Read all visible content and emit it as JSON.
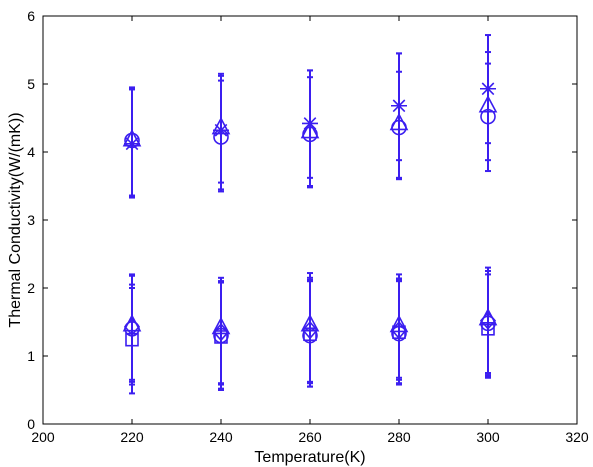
{
  "chart_data": {
    "type": "scatter",
    "xlabel": "Temperature(K)",
    "ylabel": "Thermal Conductivity(W/(mK))",
    "xlim": [
      200,
      320
    ],
    "ylim": [
      0,
      6
    ],
    "xticks": [
      200,
      220,
      240,
      260,
      280,
      300,
      320
    ],
    "yticks": [
      0,
      1,
      2,
      3,
      4,
      5,
      6
    ],
    "grid": false,
    "legend": "none",
    "series": [
      {
        "marker": "circle",
        "color": "#3b1ef0",
        "x": [
          220,
          240,
          260,
          280,
          300
        ],
        "y": [
          4.17,
          4.22,
          4.26,
          4.36,
          4.52
        ],
        "err_lo": [
          3.35,
          3.45,
          3.5,
          3.62,
          3.72
        ],
        "err_hi": [
          4.95,
          5.05,
          5.1,
          5.18,
          5.3
        ]
      },
      {
        "marker": "triangle",
        "color": "#3b1ef0",
        "x": [
          220,
          240,
          260,
          280,
          300
        ],
        "y": [
          4.18,
          4.36,
          4.3,
          4.42,
          4.68
        ],
        "err_lo": [
          3.33,
          3.42,
          3.48,
          3.6,
          3.88
        ],
        "err_hi": [
          4.93,
          5.12,
          5.2,
          5.45,
          5.47
        ]
      },
      {
        "marker": "star",
        "color": "#3b1ef0",
        "x": [
          220,
          240,
          260,
          280,
          300
        ],
        "y": [
          4.12,
          4.32,
          4.42,
          4.68,
          4.93
        ],
        "err_lo": [
          3.36,
          3.55,
          3.62,
          3.88,
          4.13
        ],
        "err_hi": [
          4.92,
          5.15,
          5.2,
          5.45,
          5.72
        ]
      },
      {
        "marker": "diamond",
        "color": "#3b1ef0",
        "x": [
          220,
          240,
          260,
          280,
          300
        ],
        "y": [
          1.43,
          1.35,
          1.38,
          1.38,
          1.52
        ],
        "err_lo": [
          0.58,
          0.52,
          0.55,
          0.6,
          0.72
        ],
        "err_hi": [
          2.2,
          2.15,
          2.22,
          2.2,
          2.3
        ]
      },
      {
        "marker": "square",
        "color": "#3b1ef0",
        "x": [
          220,
          240,
          260,
          280,
          300
        ],
        "y": [
          1.24,
          1.28,
          1.32,
          1.35,
          1.4
        ],
        "err_lo": [
          0.45,
          0.5,
          0.55,
          0.58,
          0.68
        ],
        "err_hi": [
          2.18,
          2.1,
          2.12,
          2.14,
          2.25
        ]
      },
      {
        "marker": "circle",
        "color": "#3b1ef0",
        "x": [
          220,
          240,
          260,
          280,
          300
        ],
        "y": [
          1.4,
          1.3,
          1.3,
          1.33,
          1.48
        ],
        "err_lo": [
          0.62,
          0.58,
          0.6,
          0.65,
          0.7
        ],
        "err_hi": [
          2.0,
          2.08,
          2.1,
          2.12,
          2.2
        ]
      },
      {
        "marker": "triangle",
        "color": "#3b1ef0",
        "x": [
          220,
          240,
          260,
          280,
          300
        ],
        "y": [
          1.46,
          1.42,
          1.46,
          1.45,
          1.55
        ],
        "err_lo": [
          0.65,
          0.6,
          0.62,
          0.68,
          0.75
        ],
        "err_hi": [
          2.05,
          2.1,
          2.15,
          2.1,
          2.25
        ]
      }
    ]
  }
}
